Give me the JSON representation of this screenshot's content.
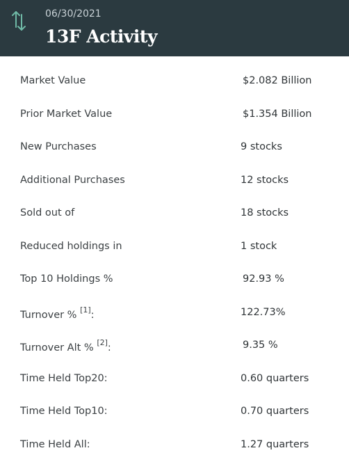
{
  "header": {
    "date": "06/30/2021",
    "title": "13F Activity",
    "icon": "sort-arrows-icon",
    "icon_color": "#6fb9a6",
    "background": "#2b3a40"
  },
  "rows": [
    {
      "label": "Market Value",
      "value": "$2.082 Billion"
    },
    {
      "label": "Prior Market Value",
      "value": "$1.354 Billion"
    },
    {
      "label": "New Purchases",
      "value": "9 stocks"
    },
    {
      "label": "Additional Purchases",
      "value": "12 stocks"
    },
    {
      "label": "Sold out of",
      "value": "18 stocks"
    },
    {
      "label": "Reduced holdings in",
      "value": "1 stock"
    },
    {
      "label": "Top 10 Holdings %",
      "value": "92.93 %"
    },
    {
      "label": "Turnover %",
      "footnote": "[1]",
      "suffix": ":",
      "value": "122.73%"
    },
    {
      "label": "Turnover Alt %",
      "footnote": "[2]",
      "suffix": ":",
      "value": "9.35 %"
    },
    {
      "label": "Time Held Top20:",
      "value": "0.60 quarters"
    },
    {
      "label": "Time Held Top10:",
      "value": "0.70 quarters"
    },
    {
      "label": "Time Held All:",
      "value": "1.27 quarters"
    }
  ]
}
